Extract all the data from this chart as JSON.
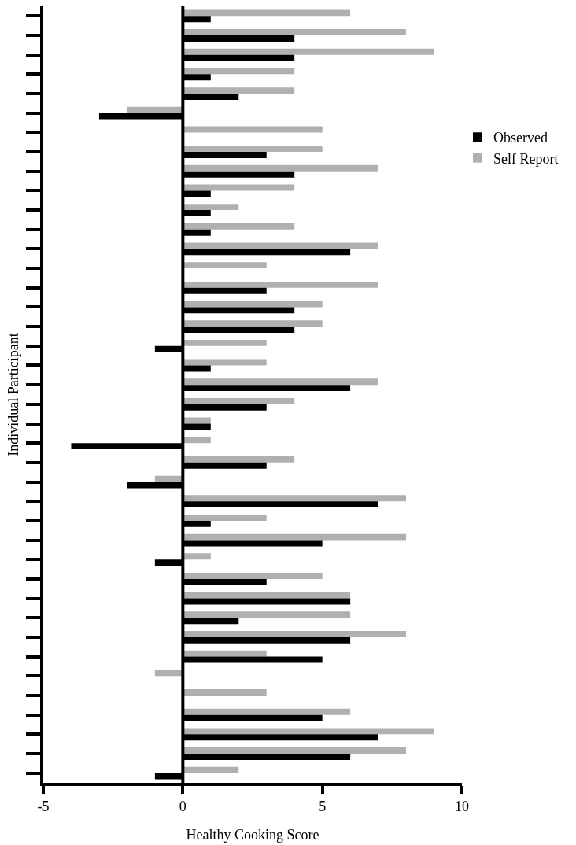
{
  "chart_data": {
    "type": "bar",
    "orientation": "horizontal",
    "xlabel": "Healthy Cooking Score",
    "ylabel": "Individual Participant",
    "categories": [
      null,
      null,
      null,
      null,
      null,
      null,
      null,
      null,
      null,
      null,
      null,
      null,
      null,
      null,
      null,
      null,
      null,
      null,
      null,
      null,
      null,
      null,
      null,
      null,
      null,
      null,
      null,
      null,
      null,
      null,
      null,
      null,
      null,
      null,
      null,
      null,
      null,
      null,
      null,
      null
    ],
    "series": [
      {
        "name": "Self Report",
        "color": "#b0b0b0",
        "values": [
          6,
          8,
          9,
          4,
          4,
          -2,
          5,
          5,
          7,
          4,
          2,
          4,
          7,
          3,
          7,
          5,
          5,
          3,
          3,
          7,
          4,
          1,
          1,
          4,
          -1,
          8,
          3,
          8,
          1,
          5,
          6,
          6,
          8,
          3,
          -1,
          3,
          6,
          9,
          8,
          2
        ]
      },
      {
        "name": "Observed",
        "color": "#000000",
        "values": [
          1,
          4,
          4,
          1,
          2,
          -3,
          0,
          3,
          4,
          1,
          1,
          1,
          6,
          0,
          3,
          4,
          4,
          -1,
          1,
          6,
          3,
          1,
          -4,
          3,
          -2,
          7,
          1,
          5,
          -1,
          3,
          6,
          2,
          6,
          5,
          0,
          0,
          5,
          7,
          6,
          -1
        ]
      }
    ],
    "xlim": [
      -5,
      10
    ],
    "xticks": [
      -5,
      0,
      5,
      10
    ],
    "ref_lines": [
      {
        "axis": "x",
        "value": 0,
        "color": "#000000"
      }
    ],
    "grid": false,
    "legend": "right",
    "tick_labels": "x"
  }
}
